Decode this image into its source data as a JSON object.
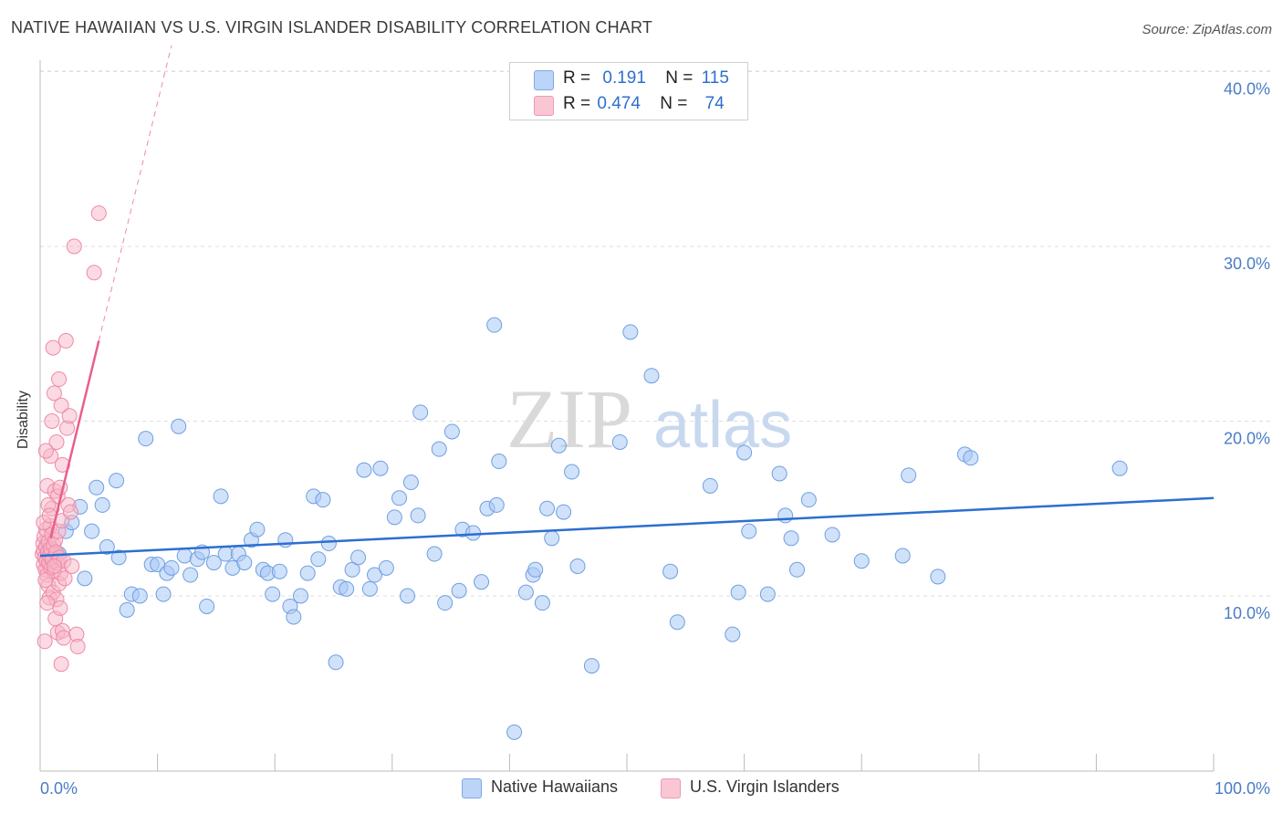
{
  "header": {
    "title": "NATIVE HAWAIIAN VS U.S. VIRGIN ISLANDER DISABILITY CORRELATION CHART",
    "source": "Source: ZipAtlas.com"
  },
  "colors": {
    "blue_fill": "#a9c8f5",
    "blue_stroke": "#6f9fe0",
    "blue_line": "#2c6fd0",
    "pink_fill": "#f7b6c8",
    "pink_stroke": "#ee8aa7",
    "pink_line": "#e8608a",
    "axis_text": "#4a7cc8",
    "grid": "#dddddd"
  },
  "legend_top": {
    "rows": [
      {
        "r_label": "R =",
        "r_value": "0.191",
        "n_label": "N =",
        "n_value": "115"
      },
      {
        "r_label": "R =",
        "r_value": "0.474",
        "n_label": "N =",
        "n_value": "74"
      }
    ]
  },
  "legend_bottom": {
    "items": [
      {
        "label": "Native Hawaiians"
      },
      {
        "label": "U.S. Virgin Islanders"
      }
    ]
  },
  "watermark": {
    "zip": "ZIP",
    "atlas": "atlas"
  },
  "chart_data": {
    "type": "scatter",
    "title": "NATIVE HAWAIIAN VS U.S. VIRGIN ISLANDER DISABILITY CORRELATION CHART",
    "xlabel": "",
    "ylabel": "Disability",
    "xlim": [
      0,
      100
    ],
    "ylim": [
      0,
      42
    ],
    "x_tick_labels": [
      "0.0%",
      "100.0%"
    ],
    "y_ticks": [
      10,
      20,
      30,
      40
    ],
    "y_tick_labels": [
      "10.0%",
      "20.0%",
      "30.0%",
      "40.0%"
    ],
    "grid": true,
    "legend": "bottom-center",
    "series": [
      {
        "name": "Native Hawaiians",
        "r": 0.191,
        "n": 115,
        "trend": {
          "x0": 0,
          "y0": 12.3,
          "x1": 100,
          "y1": 15.6,
          "style": "solid"
        },
        "points": [
          [
            0.5,
            12.8
          ],
          [
            0.6,
            12.2
          ],
          [
            0.8,
            12.9
          ],
          [
            1.0,
            12.4
          ],
          [
            1.1,
            12.6
          ],
          [
            1.2,
            12.0
          ],
          [
            1.4,
            12.3
          ],
          [
            1.6,
            12.4
          ],
          [
            2.2,
            13.7
          ],
          [
            2.7,
            14.2
          ],
          [
            3.4,
            15.1
          ],
          [
            3.8,
            11.0
          ],
          [
            4.4,
            13.7
          ],
          [
            4.8,
            16.2
          ],
          [
            5.3,
            15.2
          ],
          [
            5.7,
            12.8
          ],
          [
            6.5,
            16.6
          ],
          [
            6.7,
            12.2
          ],
          [
            7.4,
            9.2
          ],
          [
            7.8,
            10.1
          ],
          [
            8.5,
            10.0
          ],
          [
            9.0,
            19.0
          ],
          [
            9.5,
            11.8
          ],
          [
            10.0,
            11.8
          ],
          [
            10.5,
            10.1
          ],
          [
            10.8,
            11.3
          ],
          [
            11.2,
            11.6
          ],
          [
            11.8,
            19.7
          ],
          [
            12.3,
            12.3
          ],
          [
            12.8,
            11.2
          ],
          [
            13.4,
            12.1
          ],
          [
            13.8,
            12.5
          ],
          [
            14.2,
            9.4
          ],
          [
            14.8,
            11.9
          ],
          [
            15.4,
            15.7
          ],
          [
            15.8,
            12.4
          ],
          [
            16.4,
            11.6
          ],
          [
            16.9,
            12.4
          ],
          [
            17.4,
            11.9
          ],
          [
            18.0,
            13.2
          ],
          [
            18.5,
            13.8
          ],
          [
            19.0,
            11.5
          ],
          [
            19.4,
            11.3
          ],
          [
            19.8,
            10.1
          ],
          [
            20.4,
            11.4
          ],
          [
            20.9,
            13.2
          ],
          [
            21.3,
            9.4
          ],
          [
            21.6,
            8.8
          ],
          [
            22.2,
            10.0
          ],
          [
            22.8,
            11.3
          ],
          [
            23.3,
            15.7
          ],
          [
            23.7,
            12.1
          ],
          [
            24.1,
            15.5
          ],
          [
            24.6,
            13.0
          ],
          [
            25.2,
            6.2
          ],
          [
            25.6,
            10.5
          ],
          [
            26.1,
            10.4
          ],
          [
            26.6,
            11.5
          ],
          [
            27.1,
            12.2
          ],
          [
            27.6,
            17.2
          ],
          [
            28.1,
            10.4
          ],
          [
            28.5,
            11.2
          ],
          [
            29.0,
            17.3
          ],
          [
            29.5,
            11.6
          ],
          [
            30.2,
            14.5
          ],
          [
            30.6,
            15.6
          ],
          [
            31.3,
            10.0
          ],
          [
            31.6,
            16.5
          ],
          [
            32.2,
            14.6
          ],
          [
            32.4,
            20.5
          ],
          [
            33.6,
            12.4
          ],
          [
            34.0,
            18.4
          ],
          [
            34.5,
            9.6
          ],
          [
            35.1,
            19.4
          ],
          [
            35.7,
            10.3
          ],
          [
            36.0,
            13.8
          ],
          [
            36.9,
            13.6
          ],
          [
            37.6,
            10.8
          ],
          [
            38.1,
            15.0
          ],
          [
            38.7,
            25.5
          ],
          [
            38.9,
            15.2
          ],
          [
            39.1,
            17.7
          ],
          [
            40.4,
            2.2
          ],
          [
            41.4,
            10.2
          ],
          [
            42.0,
            11.2
          ],
          [
            42.2,
            11.5
          ],
          [
            42.8,
            9.6
          ],
          [
            43.2,
            15.0
          ],
          [
            43.6,
            13.3
          ],
          [
            44.2,
            18.6
          ],
          [
            44.6,
            14.8
          ],
          [
            45.3,
            17.1
          ],
          [
            45.8,
            11.7
          ],
          [
            47.0,
            6.0
          ],
          [
            49.4,
            18.8
          ],
          [
            50.3,
            25.1
          ],
          [
            52.1,
            22.6
          ],
          [
            53.7,
            11.4
          ],
          [
            54.3,
            8.5
          ],
          [
            57.1,
            16.3
          ],
          [
            59.0,
            7.8
          ],
          [
            59.5,
            10.2
          ],
          [
            60.0,
            18.2
          ],
          [
            60.4,
            13.7
          ],
          [
            62.0,
            10.1
          ],
          [
            63.0,
            17.0
          ],
          [
            63.5,
            14.6
          ],
          [
            64.0,
            13.3
          ],
          [
            64.5,
            11.5
          ],
          [
            65.5,
            15.5
          ],
          [
            67.5,
            13.5
          ],
          [
            70.0,
            12.0
          ],
          [
            73.5,
            12.3
          ],
          [
            74.0,
            16.9
          ],
          [
            76.5,
            11.1
          ],
          [
            78.8,
            18.1
          ],
          [
            79.3,
            17.9
          ],
          [
            92.0,
            17.3
          ]
        ]
      },
      {
        "name": "U.S. Virgin Islanders",
        "r": 0.474,
        "n": 74,
        "trend": {
          "x0": 0.9,
          "y0": 13.3,
          "x1": 5.0,
          "y1": 24.6,
          "x_ext": 11.2,
          "y_ext": 41.5,
          "style": "solid + dashed extension"
        },
        "points": [
          [
            0.2,
            12.4
          ],
          [
            0.25,
            13.0
          ],
          [
            0.3,
            11.8
          ],
          [
            0.3,
            12.6
          ],
          [
            0.35,
            13.4
          ],
          [
            0.4,
            12.2
          ],
          [
            0.45,
            11.5
          ],
          [
            0.5,
            12.8
          ],
          [
            0.5,
            13.8
          ],
          [
            0.55,
            12.0
          ],
          [
            0.6,
            11.2
          ],
          [
            0.6,
            16.3
          ],
          [
            0.65,
            12.5
          ],
          [
            0.7,
            13.1
          ],
          [
            0.7,
            10.6
          ],
          [
            0.75,
            11.9
          ],
          [
            0.8,
            12.3
          ],
          [
            0.8,
            9.9
          ],
          [
            0.85,
            14.0
          ],
          [
            0.9,
            12.7
          ],
          [
            0.9,
            18.0
          ],
          [
            0.95,
            11.6
          ],
          [
            1.0,
            13.5
          ],
          [
            1.0,
            15.0
          ],
          [
            1.05,
            12.1
          ],
          [
            1.1,
            10.2
          ],
          [
            1.1,
            24.2
          ],
          [
            1.15,
            12.9
          ],
          [
            1.2,
            11.4
          ],
          [
            1.2,
            21.6
          ],
          [
            1.25,
            16.0
          ],
          [
            1.3,
            13.2
          ],
          [
            1.3,
            8.7
          ],
          [
            1.35,
            12.5
          ],
          [
            1.4,
            18.8
          ],
          [
            1.4,
            9.8
          ],
          [
            1.45,
            11.9
          ],
          [
            1.5,
            15.7
          ],
          [
            1.5,
            7.9
          ],
          [
            1.55,
            13.7
          ],
          [
            1.6,
            10.7
          ],
          [
            1.6,
            22.4
          ],
          [
            1.65,
            12.2
          ],
          [
            1.7,
            16.2
          ],
          [
            1.7,
            9.3
          ],
          [
            1.75,
            11.3
          ],
          [
            1.8,
            20.9
          ],
          [
            1.8,
            6.1
          ],
          [
            1.85,
            14.3
          ],
          [
            1.9,
            8.0
          ],
          [
            1.9,
            17.5
          ],
          [
            2.0,
            12.0
          ],
          [
            2.0,
            7.6
          ],
          [
            2.1,
            11.0
          ],
          [
            2.2,
            24.6
          ],
          [
            2.3,
            19.6
          ],
          [
            2.4,
            15.2
          ],
          [
            2.5,
            20.3
          ],
          [
            2.6,
            14.8
          ],
          [
            2.7,
            11.7
          ],
          [
            2.9,
            30.0
          ],
          [
            3.1,
            7.8
          ],
          [
            3.2,
            7.1
          ],
          [
            4.6,
            28.5
          ],
          [
            5.0,
            31.9
          ],
          [
            0.4,
            7.4
          ],
          [
            0.5,
            18.3
          ],
          [
            0.3,
            14.2
          ],
          [
            0.6,
            9.6
          ],
          [
            1.0,
            20.0
          ],
          [
            0.7,
            15.2
          ],
          [
            1.2,
            11.7
          ],
          [
            0.45,
            10.9
          ],
          [
            0.8,
            14.6
          ]
        ]
      }
    ]
  }
}
